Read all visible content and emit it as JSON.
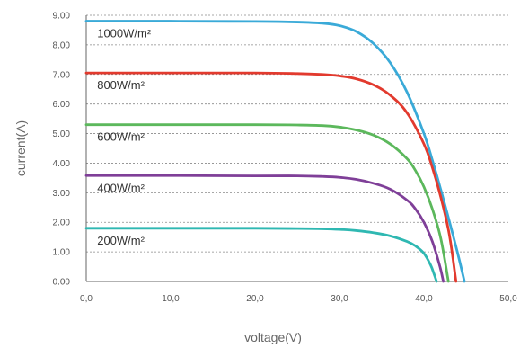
{
  "chart_data": {
    "type": "line",
    "xlabel": "voltage(V)",
    "ylabel": "current(A)",
    "xlim": [
      0,
      50
    ],
    "ylim": [
      0,
      9
    ],
    "grid": true,
    "x_ticks": [
      {
        "v": 0,
        "label": "0,0"
      },
      {
        "v": 10,
        "label": "10,0"
      },
      {
        "v": 20,
        "label": "20,0"
      },
      {
        "v": 30,
        "label": "30,0"
      },
      {
        "v": 40,
        "label": "40,0"
      },
      {
        "v": 50,
        "label": "50,0"
      }
    ],
    "y_ticks": [
      {
        "v": 0,
        "label": "0.00"
      },
      {
        "v": 1,
        "label": "1.00"
      },
      {
        "v": 2,
        "label": "2.00"
      },
      {
        "v": 3,
        "label": "3.00"
      },
      {
        "v": 4,
        "label": "4.00"
      },
      {
        "v": 5,
        "label": "5.00"
      },
      {
        "v": 6,
        "label": "6.00"
      },
      {
        "v": 7,
        "label": "7.00"
      },
      {
        "v": 8,
        "label": "8.00"
      },
      {
        "v": 9,
        "label": "9.00"
      }
    ],
    "series": [
      {
        "name": "1000W/m²",
        "color": "#3aaad8",
        "points": [
          [
            0,
            8.8
          ],
          [
            10,
            8.8
          ],
          [
            20,
            8.79
          ],
          [
            25,
            8.77
          ],
          [
            28,
            8.73
          ],
          [
            30,
            8.65
          ],
          [
            32,
            8.45
          ],
          [
            34,
            8.05
          ],
          [
            36,
            7.4
          ],
          [
            38,
            6.4
          ],
          [
            40,
            5.0
          ],
          [
            41,
            4.1
          ],
          [
            42,
            3.1
          ],
          [
            43,
            2.05
          ],
          [
            44,
            0.95
          ],
          [
            44.8,
            0
          ]
        ]
      },
      {
        "name": "800W/m²",
        "color": "#e23a2e",
        "points": [
          [
            0,
            7.05
          ],
          [
            10,
            7.05
          ],
          [
            20,
            7.05
          ],
          [
            25,
            7.03
          ],
          [
            28,
            7.0
          ],
          [
            30,
            6.95
          ],
          [
            32,
            6.85
          ],
          [
            34,
            6.65
          ],
          [
            36,
            6.3
          ],
          [
            38,
            5.7
          ],
          [
            40,
            4.65
          ],
          [
            41,
            3.85
          ],
          [
            42,
            2.85
          ],
          [
            43,
            1.6
          ],
          [
            43.8,
            0
          ]
        ]
      },
      {
        "name": "600W/m²",
        "color": "#5cb85c",
        "points": [
          [
            0,
            5.3
          ],
          [
            10,
            5.3
          ],
          [
            20,
            5.3
          ],
          [
            25,
            5.29
          ],
          [
            28,
            5.27
          ],
          [
            30,
            5.22
          ],
          [
            32,
            5.12
          ],
          [
            34,
            4.95
          ],
          [
            36,
            4.65
          ],
          [
            38,
            4.15
          ],
          [
            39,
            3.75
          ],
          [
            40,
            3.2
          ],
          [
            41,
            2.45
          ],
          [
            42,
            1.45
          ],
          [
            42.9,
            0
          ]
        ]
      },
      {
        "name": "400W/m²",
        "color": "#7f3f98",
        "points": [
          [
            0,
            3.58
          ],
          [
            10,
            3.58
          ],
          [
            20,
            3.57
          ],
          [
            25,
            3.57
          ],
          [
            28,
            3.55
          ],
          [
            30,
            3.52
          ],
          [
            32,
            3.45
          ],
          [
            34,
            3.32
          ],
          [
            36,
            3.12
          ],
          [
            38,
            2.75
          ],
          [
            39,
            2.45
          ],
          [
            40,
            2.0
          ],
          [
            41,
            1.35
          ],
          [
            41.9,
            0.5
          ],
          [
            42.3,
            0
          ]
        ]
      },
      {
        "name": "200W/m²",
        "color": "#2fb8b2",
        "points": [
          [
            0,
            1.8
          ],
          [
            10,
            1.8
          ],
          [
            20,
            1.8
          ],
          [
            25,
            1.79
          ],
          [
            28,
            1.78
          ],
          [
            30,
            1.76
          ],
          [
            32,
            1.72
          ],
          [
            34,
            1.65
          ],
          [
            36,
            1.54
          ],
          [
            38,
            1.35
          ],
          [
            39,
            1.2
          ],
          [
            40,
            0.95
          ],
          [
            40.8,
            0.55
          ],
          [
            41.2,
            0.25
          ],
          [
            41.5,
            0
          ]
        ]
      }
    ],
    "annotations": [
      {
        "text": "1000W/m²",
        "series": 0
      },
      {
        "text": "800W/m²",
        "series": 1
      },
      {
        "text": "600W/m²",
        "series": 2
      },
      {
        "text": "400W/m²",
        "series": 3
      },
      {
        "text": "200W/m²",
        "series": 4
      }
    ]
  }
}
